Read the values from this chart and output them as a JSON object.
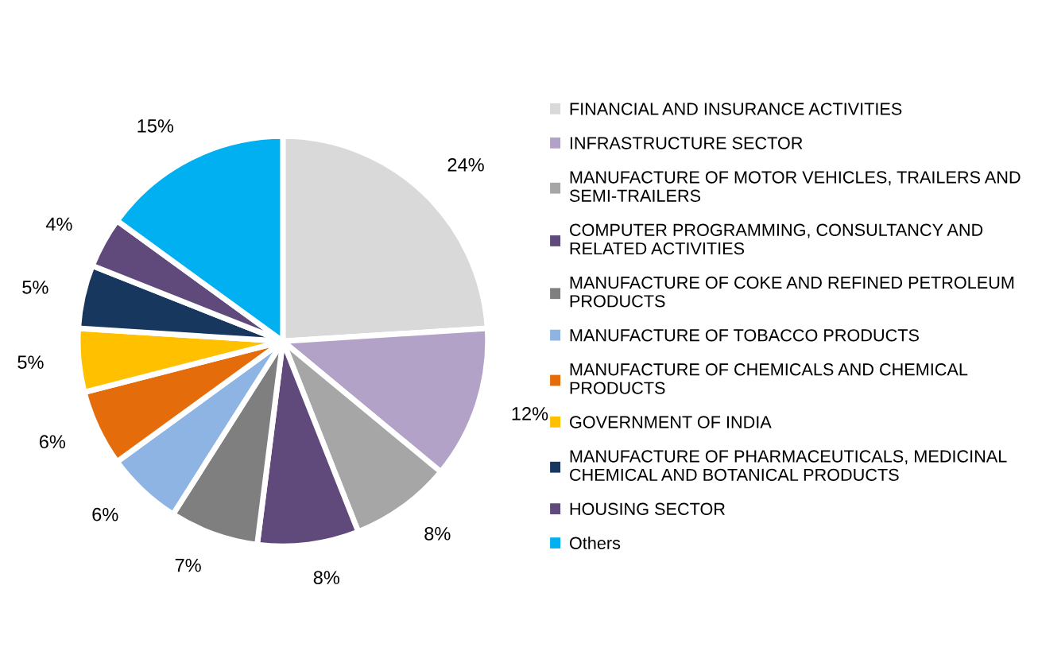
{
  "chart_data": {
    "type": "pie",
    "categories": [
      "FINANCIAL AND INSURANCE ACTIVITIES",
      "INFRASTRUCTURE SECTOR",
      "MANUFACTURE OF MOTOR VEHICLES, TRAILERS AND\nSEMI-TRAILERS",
      "COMPUTER PROGRAMMING, CONSULTANCY AND\nRELATED ACTIVITIES",
      "MANUFACTURE OF COKE AND REFINED PETROLEUM\nPRODUCTS",
      "MANUFACTURE OF TOBACCO PRODUCTS",
      "MANUFACTURE OF CHEMICALS AND CHEMICAL\nPRODUCTS",
      "GOVERNMENT OF INDIA",
      "MANUFACTURE OF PHARMACEUTICALS, MEDICINAL\nCHEMICAL AND BOTANICAL PRODUCTS",
      "HOUSING SECTOR",
      "Others"
    ],
    "values": [
      24,
      12,
      8,
      8,
      7,
      6,
      6,
      5,
      5,
      4,
      15
    ],
    "value_labels": [
      "24%",
      "12%",
      "8%",
      "8%",
      "7%",
      "6%",
      "6%",
      "5%",
      "5%",
      "4%",
      "15%"
    ],
    "colors": [
      "#d9d9d9",
      "#b3a2c7",
      "#a6a6a6",
      "#604a7b",
      "#7f7f7f",
      "#8eb4e3",
      "#e46c0a",
      "#ffc000",
      "#17375e",
      "#604a7b",
      "#00b0f0"
    ],
    "legend": "right"
  }
}
